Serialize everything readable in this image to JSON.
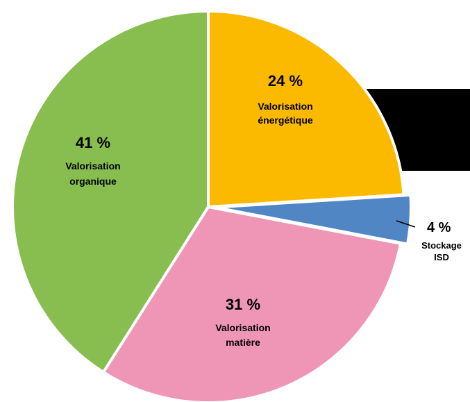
{
  "chart_data": {
    "type": "pie",
    "slices": [
      {
        "percent_label": "24 %",
        "label_lines": [
          "Valorisation",
          "énergétique"
        ],
        "value": 24,
        "color": "#FBBA00"
      },
      {
        "percent_label": "4 %",
        "label_lines": [
          "Stockage",
          "ISD"
        ],
        "value": 4,
        "color": "#5186C4"
      },
      {
        "percent_label": "31 %",
        "label_lines": [
          "Valorisation",
          "matière"
        ],
        "value": 31,
        "color": "#EF96B6"
      },
      {
        "percent_label": "41 %",
        "label_lines": [
          "Valorisation",
          "organique"
        ],
        "value": 41,
        "color": "#88BD4F"
      }
    ],
    "start_angle_deg": 0,
    "direction": "clockwise",
    "separator_color": "#ffffff"
  },
  "decoration": {
    "banner_color": "#000000"
  }
}
